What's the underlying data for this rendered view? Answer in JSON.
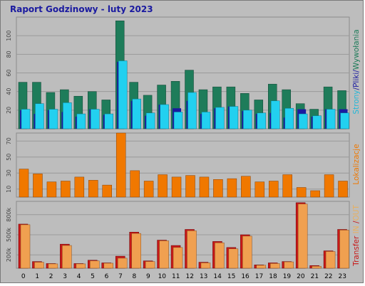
{
  "title": "Raport Godzinowy -   luty 2023",
  "colors": {
    "background": "#bdbdbd",
    "wyswietlenia": "#1e7c5a",
    "pliki": "#1a1aa0",
    "strony": "#22d0f0",
    "lokalizacje": "#f07800",
    "transfer_out": "#c81818",
    "transfer_in": "#f0a050"
  },
  "legend": {
    "strony": "Strony",
    "pliki": "Pliki",
    "wyswietlenia": "Wywołania",
    "sep": "/",
    "lokalizacje": "Lokalizacje",
    "transfer": "Transfer",
    "in": "IN",
    "out": "OUT"
  },
  "chart_data": {
    "type": "bar",
    "categories": [
      "0",
      "1",
      "2",
      "3",
      "4",
      "5",
      "6",
      "7",
      "8",
      "9",
      "10",
      "11",
      "12",
      "13",
      "14",
      "15",
      "16",
      "17",
      "18",
      "19",
      "20",
      "21",
      "22",
      "23"
    ],
    "panels": [
      {
        "id": "hits",
        "y_ticks": [
          20,
          40,
          60,
          80,
          100
        ],
        "ylim": [
          0,
          120
        ],
        "series": [
          {
            "key": "wyswietlenia",
            "values": [
              50,
              50,
              39,
              42,
              35,
              40,
              31,
              116,
              50,
              36,
              47,
              51,
              63,
              42,
              45,
              45,
              38,
              31,
              48,
              42,
              27,
              21,
              45,
              41
            ]
          },
          {
            "key": "pliki",
            "values": [
              20,
              16,
              20,
              18,
              13,
              21,
              15,
              72,
              30,
              14,
              26,
              22,
              30,
              16,
              22,
              24,
              19,
              16,
              17,
              12,
              21,
              13,
              21,
              21
            ]
          },
          {
            "key": "strony",
            "values": [
              21,
              27,
              21,
              28,
              16,
              21,
              16,
              73,
              32,
              17,
              26,
              18,
              39,
              18,
              23,
              24,
              20,
              17,
              30,
              22,
              16,
              14,
              21,
              17
            ]
          }
        ]
      },
      {
        "id": "sites",
        "y_ticks": [
          10,
          30,
          50,
          70
        ],
        "ylim": [
          0,
          80
        ],
        "series": [
          {
            "key": "lokalizacje",
            "values": [
              35,
              29,
              19,
              20,
              25,
              21,
              15,
              80,
              33,
              20,
              28,
              25,
              27,
              25,
              22,
              23,
              26,
              19,
              20,
              28,
              12,
              8,
              28,
              20
            ]
          }
        ]
      },
      {
        "id": "kbytes",
        "y_ticks": [
          "200k",
          "500k",
          "800k"
        ],
        "y_tick_values": [
          200,
          500,
          800
        ],
        "ylim": [
          0,
          1000
        ],
        "series": [
          {
            "key": "transfer_out",
            "values": [
              660,
              100,
              70,
              360,
              70,
              120,
              80,
              180,
              540,
              110,
              420,
              340,
              580,
              90,
              400,
              310,
              500,
              50,
              80,
              100,
              980,
              40,
              260,
              580
            ]
          },
          {
            "key": "transfer_in",
            "values": [
              650,
              90,
              65,
              340,
              65,
              110,
              75,
              150,
              520,
              100,
              410,
              310,
              560,
              80,
              380,
              290,
              480,
              45,
              70,
              95,
              960,
              30,
              250,
              570
            ]
          }
        ]
      }
    ]
  }
}
